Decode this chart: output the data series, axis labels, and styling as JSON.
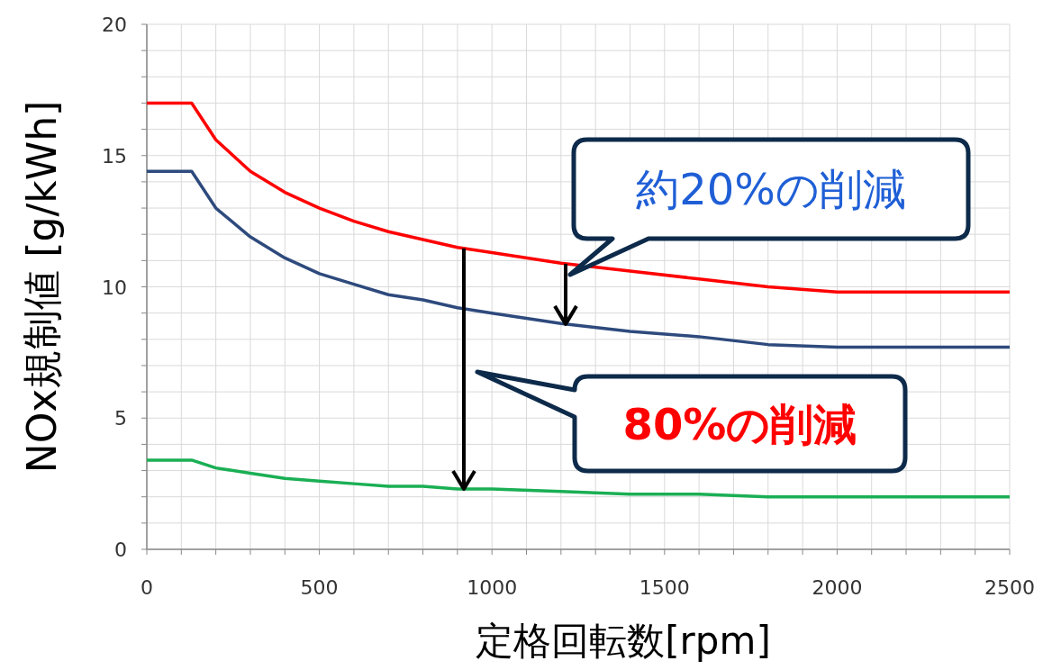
{
  "chart_data": {
    "type": "line",
    "xlabel": "定格回転数[rpm]",
    "ylabel": "NOx規制値 [g/kWh]",
    "x": [
      0,
      130,
      200,
      300,
      400,
      500,
      600,
      700,
      800,
      900,
      1000,
      1200,
      1400,
      1600,
      1800,
      2000,
      2500
    ],
    "series": [
      {
        "color": "#ff0000",
        "values": [
          17.0,
          17.0,
          15.6,
          14.4,
          13.6,
          13.0,
          12.5,
          12.1,
          11.8,
          11.5,
          11.3,
          10.9,
          10.6,
          10.3,
          10.0,
          9.8,
          9.8
        ]
      },
      {
        "color": "#2e4a7d",
        "values": [
          14.4,
          14.4,
          13.0,
          11.9,
          11.1,
          10.5,
          10.1,
          9.7,
          9.5,
          9.2,
          9.0,
          8.6,
          8.3,
          8.1,
          7.8,
          7.7,
          7.7
        ]
      },
      {
        "color": "#1aaf54",
        "values": [
          3.4,
          3.4,
          3.1,
          2.9,
          2.7,
          2.6,
          2.5,
          2.4,
          2.4,
          2.3,
          2.3,
          2.2,
          2.1,
          2.1,
          2.0,
          2.0,
          2.0
        ]
      }
    ],
    "xlim": [
      0,
      2500
    ],
    "ylim": [
      0,
      20
    ],
    "xticks": [
      0,
      {
        "value": 100,
        "label": null
      },
      {
        "value": 200,
        "label": null
      },
      {
        "value": 300,
        "label": null
      },
      {
        "value": 400,
        "label": null
      },
      500,
      {
        "value": 600,
        "label": null
      },
      {
        "value": 700,
        "label": null
      },
      {
        "value": 800,
        "label": null
      },
      {
        "value": 900,
        "label": null
      },
      1000,
      {
        "value": 1100,
        "label": null
      },
      {
        "value": 1200,
        "label": null
      },
      {
        "value": 1300,
        "label": null
      },
      {
        "value": 1400,
        "label": null
      },
      1500,
      {
        "value": 1600,
        "label": null
      },
      {
        "value": 1700,
        "label": null
      },
      {
        "value": 1800,
        "label": null
      },
      {
        "value": 1900,
        "label": null
      },
      2000,
      {
        "value": 2100,
        "label": null
      },
      {
        "value": 2200,
        "label": null
      },
      {
        "value": 2300,
        "label": null
      },
      {
        "value": 2400,
        "label": null
      },
      2500
    ],
    "yticks": [
      0,
      {
        "value": 1,
        "label": null
      },
      {
        "value": 2,
        "label": null
      },
      {
        "value": 3,
        "label": null
      },
      {
        "value": 4,
        "label": null
      },
      5,
      {
        "value": 6,
        "label": null
      },
      {
        "value": 7,
        "label": null
      },
      {
        "value": 8,
        "label": null
      },
      {
        "value": 9,
        "label": null
      },
      10,
      {
        "value": 11,
        "label": null
      },
      {
        "value": 12,
        "label": null
      },
      {
        "value": 13,
        "label": null
      },
      {
        "value": 14,
        "label": null
      },
      15,
      {
        "value": 16,
        "label": null
      },
      {
        "value": 17,
        "label": null
      },
      {
        "value": 18,
        "label": null
      },
      {
        "value": 19,
        "label": null
      },
      20
    ],
    "grid": true,
    "marker": "none",
    "line_style": "solid",
    "annotations": [
      "約20%の削減",
      "80%の削減"
    ]
  }
}
